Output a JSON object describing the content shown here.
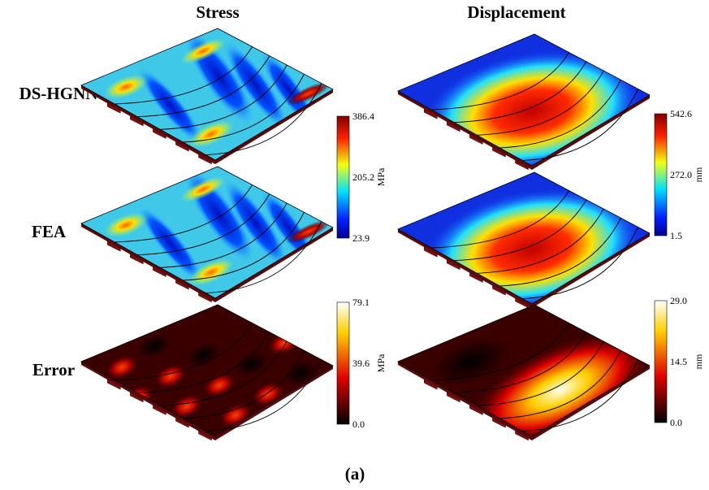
{
  "columns": [
    "Stress",
    "Displacement"
  ],
  "rows": [
    "DS-HGNN",
    "FEA",
    "Error"
  ],
  "colorbars": [
    {
      "unit": "MPa",
      "ticks": [
        "386.4",
        "205.2",
        "23.9"
      ]
    },
    {
      "unit": "MPa",
      "ticks": [
        "79.1",
        "39.6",
        "0.0"
      ]
    },
    {
      "unit": "mm",
      "ticks": [
        "542.6",
        "272.0",
        "1.5"
      ]
    },
    {
      "unit": "mm",
      "ticks": [
        "29.0",
        "14.5",
        "0.0"
      ]
    }
  ],
  "caption": "(a)"
}
